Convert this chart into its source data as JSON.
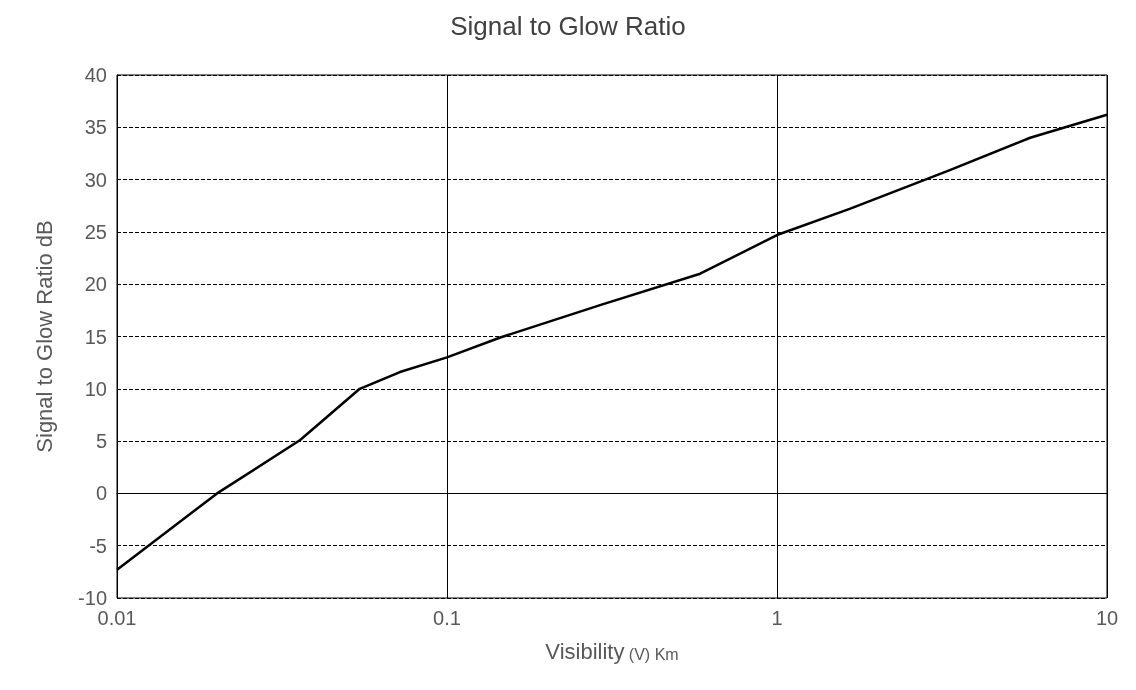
{
  "chart_data": {
    "type": "line",
    "title": "Signal to Glow Ratio",
    "xlabel": "Visibility (V) Km",
    "ylabel": "Signal to Glow Ratio dB",
    "x": [
      0.01,
      0.0201,
      0.0359,
      0.0544,
      0.072,
      0.1,
      0.145,
      0.291,
      0.585,
      1,
      1.66,
      3.34,
      5.85,
      10
    ],
    "series": [
      {
        "color": "#000000",
        "values": [
          -7.3,
          0,
          5.1,
          10,
          11.6,
          13,
          14.9,
          18,
          21,
          24.7,
          27.2,
          30.9,
          34,
          36.2
        ]
      }
    ],
    "xlim": [
      0.01,
      10
    ],
    "xticks": [
      0.01,
      0.1,
      1,
      10
    ],
    "ylim": [
      -10,
      40
    ],
    "yticks": [
      -10,
      -5,
      0,
      5,
      10,
      15,
      20,
      25,
      30,
      35,
      40
    ],
    "log": "x",
    "grid": true,
    "marker": "none",
    "line_style": "solid"
  }
}
